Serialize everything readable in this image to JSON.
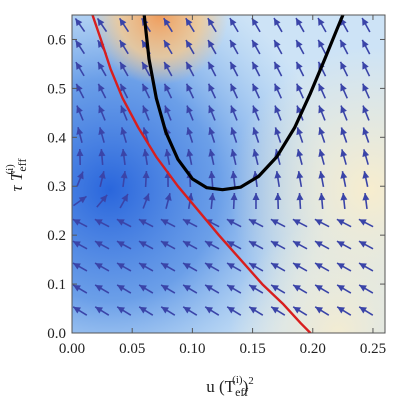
{
  "chart_data": {
    "type": "stream-density",
    "xlabel_parts": {
      "base": "u (T",
      "sub": "eff",
      "sup": "(i)",
      "tail": ")",
      "power": "2"
    },
    "ylabel_parts": {
      "base": "τ T",
      "sub": "eff",
      "sup": "(i)"
    },
    "xlim": [
      0.0,
      0.26
    ],
    "ylim": [
      0.0,
      0.65
    ],
    "x_ticks": [
      0.0,
      0.05,
      0.1,
      0.15,
      0.2,
      0.25
    ],
    "x_tick_labels": [
      "0.00",
      "0.05",
      "0.10",
      "0.15",
      "0.20",
      "0.25"
    ],
    "y_ticks": [
      0.0,
      0.1,
      0.2,
      0.3,
      0.4,
      0.5,
      0.6
    ],
    "y_tick_labels": [
      "0.0",
      "0.1",
      "0.2",
      "0.3",
      "0.4",
      "0.5",
      "0.6"
    ],
    "series": [
      {
        "color": "#d81e1e",
        "x": [
          0.017,
          0.024,
          0.032,
          0.042,
          0.055,
          0.07,
          0.088,
          0.105,
          0.122,
          0.14,
          0.158,
          0.175,
          0.19,
          0.198
        ],
        "y": [
          0.65,
          0.6,
          0.54,
          0.48,
          0.42,
          0.36,
          0.3,
          0.25,
          0.2,
          0.15,
          0.1,
          0.06,
          0.02,
          0.0
        ]
      },
      {
        "color": "#000000",
        "x": [
          0.06,
          0.064,
          0.07,
          0.078,
          0.088,
          0.1,
          0.112,
          0.125,
          0.14,
          0.155,
          0.17,
          0.185,
          0.198,
          0.21,
          0.22,
          0.225
        ],
        "y": [
          0.65,
          0.56,
          0.48,
          0.41,
          0.355,
          0.315,
          0.297,
          0.293,
          0.298,
          0.32,
          0.36,
          0.42,
          0.49,
          0.56,
          0.62,
          0.65
        ]
      }
    ],
    "colors": {
      "blue": "#2f6fe0",
      "light_blue": "#cfe6f7",
      "pale": "#f4efd8",
      "orange": "#f2b27a",
      "arrow": "#3a44a8",
      "frame": "#555555"
    }
  }
}
